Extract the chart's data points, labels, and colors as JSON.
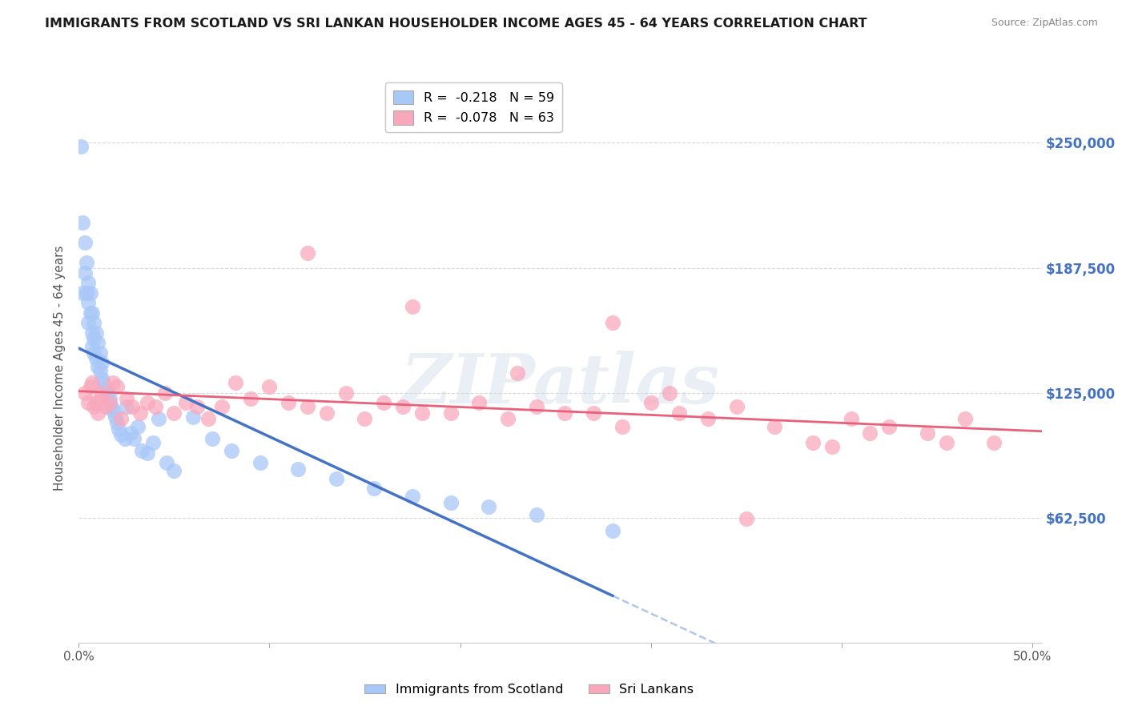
{
  "title": "IMMIGRANTS FROM SCOTLAND VS SRI LANKAN HOUSEHOLDER INCOME AGES 45 - 64 YEARS CORRELATION CHART",
  "source": "Source: ZipAtlas.com",
  "ylabel": "Householder Income Ages 45 - 64 years",
  "ytick_labels": [
    "$62,500",
    "$125,000",
    "$187,500",
    "$250,000"
  ],
  "ytick_values": [
    62500,
    125000,
    187500,
    250000
  ],
  "ylim": [
    0,
    275000
  ],
  "xlim": [
    0.0,
    0.505
  ],
  "xtick_values": [
    0.0,
    0.1,
    0.2,
    0.3,
    0.4,
    0.5
  ],
  "xtick_labels": [
    "0.0%",
    "",
    "",
    "",
    "",
    "50.0%"
  ],
  "legend_top": [
    {
      "label": "R =  -0.218   N = 59",
      "color": "#a8c8f8"
    },
    {
      "label": "R =  -0.078   N = 63",
      "color": "#f9a8bc"
    }
  ],
  "legend_bottom": [
    {
      "label": "Immigrants from Scotland",
      "color": "#a8c8f8"
    },
    {
      "label": "Sri Lankans",
      "color": "#f9a8bc"
    }
  ],
  "scotland_scatter_x": [
    0.001,
    0.002,
    0.002,
    0.003,
    0.003,
    0.004,
    0.004,
    0.005,
    0.005,
    0.005,
    0.006,
    0.006,
    0.007,
    0.007,
    0.007,
    0.008,
    0.008,
    0.008,
    0.009,
    0.009,
    0.01,
    0.01,
    0.011,
    0.011,
    0.012,
    0.012,
    0.013,
    0.014,
    0.015,
    0.016,
    0.017,
    0.018,
    0.019,
    0.02,
    0.021,
    0.022,
    0.024,
    0.025,
    0.027,
    0.029,
    0.031,
    0.033,
    0.036,
    0.039,
    0.042,
    0.046,
    0.05,
    0.06,
    0.07,
    0.08,
    0.095,
    0.115,
    0.135,
    0.155,
    0.175,
    0.195,
    0.215,
    0.24,
    0.28
  ],
  "scotland_scatter_y": [
    248000,
    210000,
    175000,
    200000,
    185000,
    190000,
    175000,
    180000,
    170000,
    160000,
    175000,
    165000,
    165000,
    155000,
    148000,
    160000,
    152000,
    145000,
    155000,
    142000,
    150000,
    138000,
    145000,
    136000,
    140000,
    132000,
    130000,
    127000,
    125000,
    122000,
    118000,
    116000,
    113000,
    110000,
    107000,
    104000,
    102000,
    118000,
    105000,
    102000,
    108000,
    96000,
    95000,
    100000,
    112000,
    90000,
    86000,
    113000,
    102000,
    96000,
    90000,
    87000,
    82000,
    77000,
    73000,
    70000,
    68000,
    64000,
    56000
  ],
  "srilanka_scatter_x": [
    0.003,
    0.005,
    0.006,
    0.007,
    0.008,
    0.009,
    0.01,
    0.011,
    0.012,
    0.014,
    0.016,
    0.018,
    0.02,
    0.022,
    0.025,
    0.028,
    0.032,
    0.036,
    0.04,
    0.045,
    0.05,
    0.056,
    0.062,
    0.068,
    0.075,
    0.082,
    0.09,
    0.1,
    0.11,
    0.12,
    0.13,
    0.14,
    0.15,
    0.16,
    0.17,
    0.18,
    0.195,
    0.21,
    0.225,
    0.24,
    0.255,
    0.27,
    0.285,
    0.3,
    0.315,
    0.33,
    0.345,
    0.365,
    0.385,
    0.405,
    0.425,
    0.445,
    0.465,
    0.48,
    0.35,
    0.28,
    0.31,
    0.395,
    0.415,
    0.455,
    0.12,
    0.175,
    0.23
  ],
  "srilanka_scatter_y": [
    125000,
    120000,
    128000,
    130000,
    118000,
    120000,
    115000,
    122000,
    125000,
    118000,
    120000,
    130000,
    128000,
    112000,
    122000,
    118000,
    115000,
    120000,
    118000,
    125000,
    115000,
    120000,
    118000,
    112000,
    118000,
    130000,
    122000,
    128000,
    120000,
    118000,
    115000,
    125000,
    112000,
    120000,
    118000,
    115000,
    115000,
    120000,
    112000,
    118000,
    115000,
    115000,
    108000,
    120000,
    115000,
    112000,
    118000,
    108000,
    100000,
    112000,
    108000,
    105000,
    112000,
    100000,
    62000,
    160000,
    125000,
    98000,
    105000,
    100000,
    195000,
    168000,
    135000
  ],
  "scotland_line_color": "#4472c4",
  "srilanka_line_color": "#e8607a",
  "scotland_dot_color": "#a8c8f8",
  "srilanka_dot_color": "#f9a8bc",
  "scotland_line_dash_color": "#b0c8e8",
  "watermark_text": "ZIPatlas",
  "background_color": "#ffffff",
  "grid_color": "#d8d8d8",
  "title_color": "#1a1a1a",
  "label_color": "#555555",
  "right_tick_color": "#4472c4"
}
